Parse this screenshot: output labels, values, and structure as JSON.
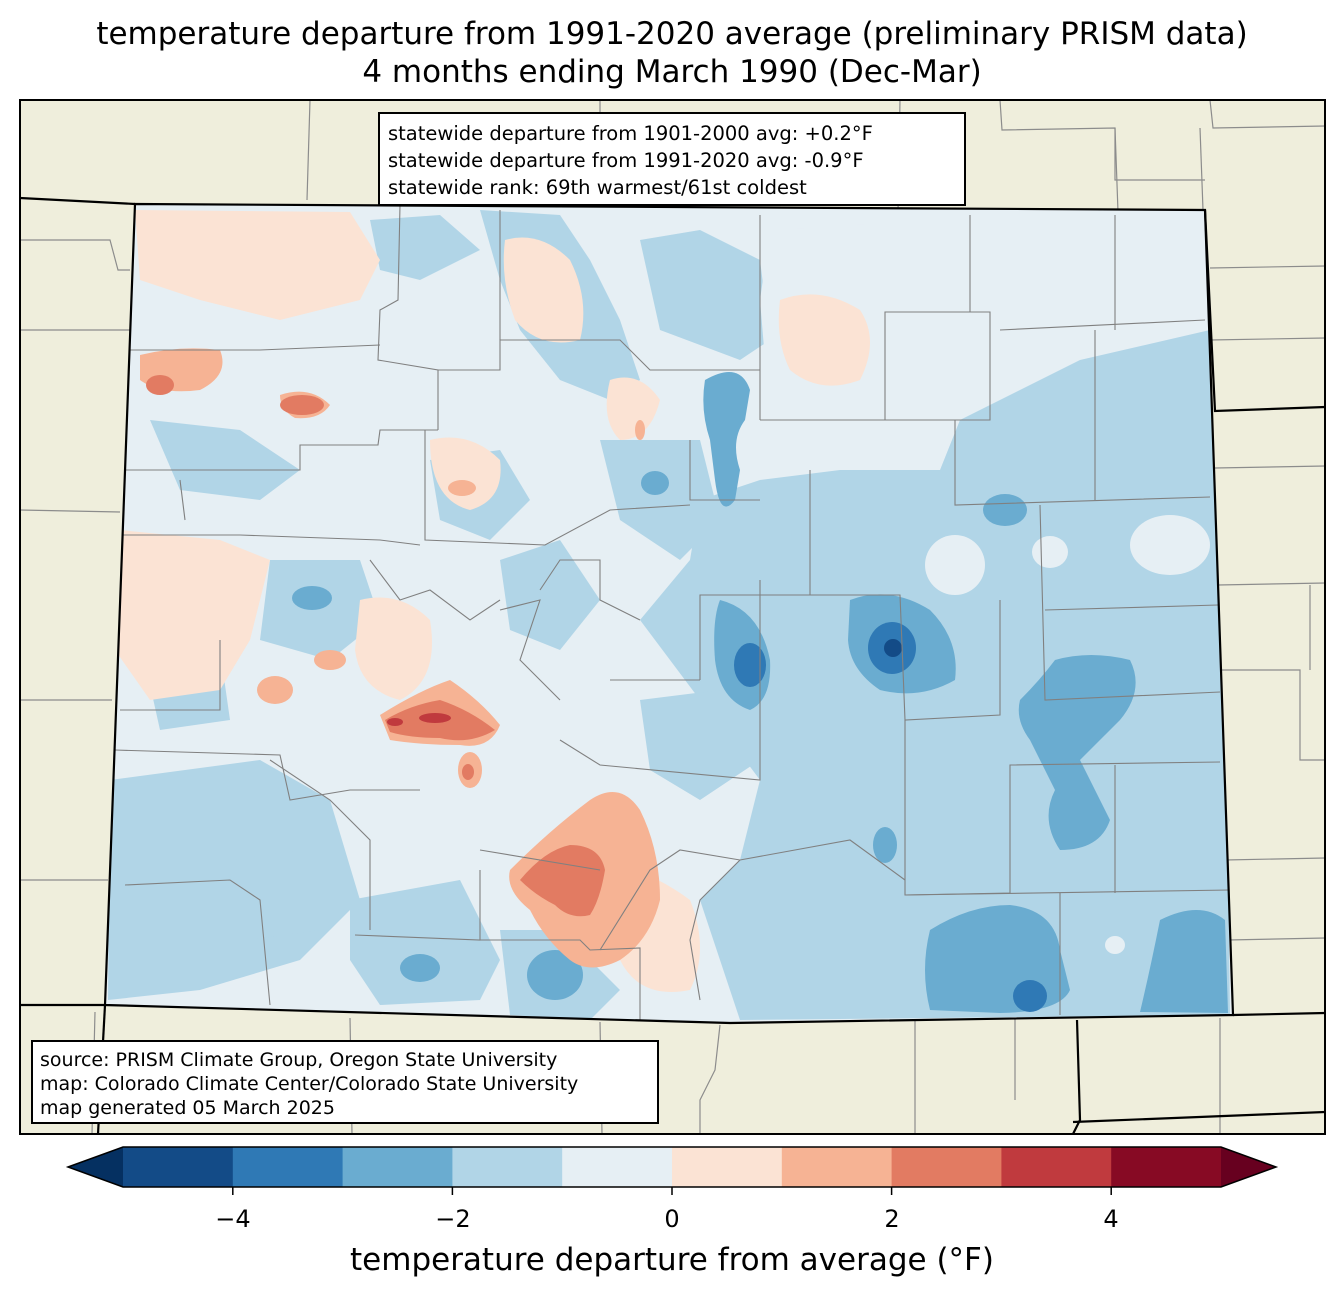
{
  "title": {
    "line1": "temperature departure from 1991-2020 average (preliminary PRISM data)",
    "line2": "4 months ending March 1990 (Dec-Mar)"
  },
  "stats": {
    "line1": "statewide departure from 1901-2000 avg: +0.2°F",
    "line2": "statewide departure from 1991-2020 avg: -0.9°F",
    "line3": "statewide rank: 69th warmest/61st coldest"
  },
  "source": {
    "line1": "source: PRISM Climate Group, Oregon State University",
    "line2": "map: Colorado Climate Center/Colorado State University",
    "line3": "map generated 05 March 2025"
  },
  "colorbar": {
    "label": "temperature departure from average (°F)",
    "ticks": [
      "−4",
      "−2",
      "0",
      "2",
      "4"
    ],
    "bins": [
      -5,
      -4,
      -3,
      -2,
      -1,
      0,
      1,
      2,
      3,
      4,
      5
    ],
    "colors": [
      "#053061",
      "#134b87",
      "#2f79b5",
      "#6aacd0",
      "#b1d5e7",
      "#e6eff4",
      "#fbe3d4",
      "#f6b394",
      "#e27b62",
      "#c03a3e",
      "#870a24",
      "#67001f"
    ]
  },
  "map": {
    "background": "#efeedc",
    "state_fill": "#e6eff4"
  }
}
